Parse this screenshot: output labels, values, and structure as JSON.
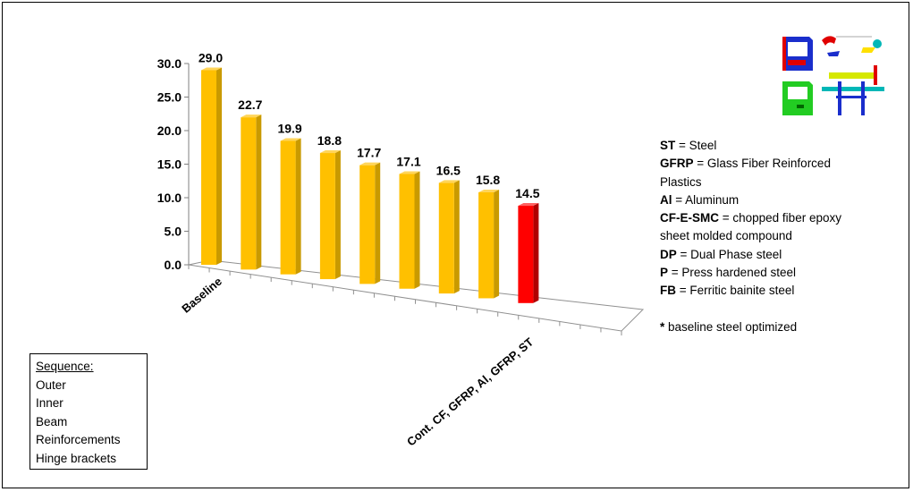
{
  "chart_data": {
    "type": "bar",
    "title": "",
    "xlabel": "",
    "ylabel": "",
    "categories": [
      "Baseline",
      "",
      "",
      "",
      "",
      "",
      "",
      "",
      "Cont. CF, GFRP, Al, GFRP, ST"
    ],
    "values": [
      29.0,
      22.7,
      19.9,
      18.8,
      17.7,
      17.1,
      16.5,
      15.8,
      14.5
    ],
    "value_labels": [
      "29.0",
      "22.7",
      "19.9",
      "18.8",
      "17.7",
      "17.1",
      "16.5",
      "15.8",
      "14.5"
    ],
    "yticks": [
      "0.0",
      "5.0",
      "10.0",
      "15.0",
      "20.0",
      "25.0",
      "30.0"
    ],
    "ylim": [
      0,
      30
    ],
    "grid": false,
    "style": "3d-perspective",
    "highlight_index": 8,
    "colors": {
      "bar": "#FFC000",
      "bar_side": "#C99A00",
      "bar_top": "#FFD55A",
      "highlight": "#FF0000",
      "highlight_side": "#B00000",
      "highlight_top": "#FF6060"
    }
  },
  "legend": {
    "items": [
      {
        "abbr": "ST",
        "desc": " = Steel"
      },
      {
        "abbr": "GFRP",
        "desc": " = Glass Fiber Reinforced"
      },
      {
        "abbr": "",
        "desc": "Plastics"
      },
      {
        "abbr": "Al",
        "desc": " = Aluminum"
      },
      {
        "abbr": "CF-E-SMC",
        "desc": " = chopped fiber epoxy"
      },
      {
        "abbr": "",
        "desc": "sheet  molded compound"
      },
      {
        "abbr": "DP",
        "desc": " = Dual Phase steel"
      },
      {
        "abbr": "P",
        "desc": " = Press hardened steel"
      },
      {
        "abbr": "FB",
        "desc": " = Ferritic bainite steel"
      }
    ],
    "note_mark": "*",
    "note_text": " baseline steel optimized"
  },
  "sequence": {
    "title": "Sequence:",
    "items": [
      "Outer",
      "Inner",
      "Beam",
      "Reinforcements",
      "Hinge brackets"
    ]
  },
  "thumbnail_icons": [
    "door-outer-icon",
    "hinge-bracket-icon",
    "door-inner-icon",
    "door-beam-icon"
  ]
}
